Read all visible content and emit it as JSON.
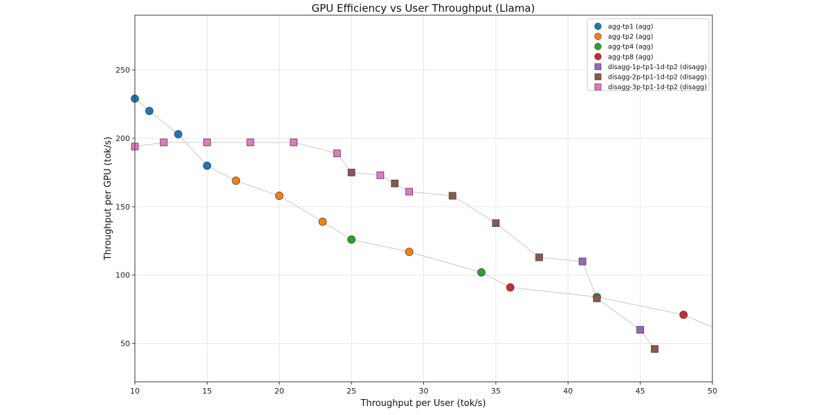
{
  "chart_data": {
    "type": "scatter",
    "title": "GPU Efficiency vs User Throughput (Llama)",
    "xlabel": "Throughput per User (tok/s)",
    "ylabel": "Throughput per GPU (tok/s)",
    "xlim": [
      10,
      50
    ],
    "ylim": [
      22,
      290
    ],
    "xticks": [
      10,
      15,
      20,
      25,
      30,
      35,
      40,
      45,
      50
    ],
    "yticks": [
      50,
      100,
      150,
      200,
      250
    ],
    "grid": true,
    "legend_position": "top-right",
    "pareto_lines": [
      {
        "points": [
          [
            10,
            229
          ],
          [
            11,
            220
          ],
          [
            13,
            203
          ],
          [
            15,
            180
          ],
          [
            17,
            169
          ],
          [
            20,
            158
          ],
          [
            23,
            139
          ],
          [
            25,
            126
          ],
          [
            29,
            117
          ],
          [
            34,
            102
          ],
          [
            36,
            91
          ],
          [
            42,
            84
          ],
          [
            48,
            71
          ],
          [
            50,
            62
          ]
        ]
      },
      {
        "points": [
          [
            10,
            194
          ],
          [
            12,
            197
          ],
          [
            15,
            197
          ],
          [
            18,
            197
          ],
          [
            21,
            197
          ],
          [
            24,
            189
          ],
          [
            25,
            175
          ],
          [
            27,
            173
          ],
          [
            28,
            167
          ],
          [
            29,
            161
          ],
          [
            32,
            158
          ],
          [
            35,
            138
          ],
          [
            38,
            113
          ],
          [
            41,
            110
          ],
          [
            42,
            83
          ],
          [
            45,
            60
          ],
          [
            46,
            46
          ]
        ]
      }
    ],
    "series": [
      {
        "name": "agg-tp1 (agg)",
        "marker": "circle",
        "color": "#1f77b4",
        "x": [
          10,
          11,
          13,
          15
        ],
        "y": [
          229,
          220,
          203,
          180
        ]
      },
      {
        "name": "agg-tp2 (agg)",
        "marker": "circle",
        "color": "#ff7f0e",
        "x": [
          17,
          20,
          23,
          29
        ],
        "y": [
          169,
          158,
          139,
          117
        ]
      },
      {
        "name": "agg-tp4 (agg)",
        "marker": "circle",
        "color": "#2ca02c",
        "x": [
          25,
          34,
          42
        ],
        "y": [
          126,
          102,
          84
        ]
      },
      {
        "name": "agg-tp8 (agg)",
        "marker": "circle",
        "color": "#d62728",
        "x": [
          36,
          48
        ],
        "y": [
          91,
          71
        ]
      },
      {
        "name": "disagg-1p-tp1-1d-tp2 (disagg)",
        "marker": "square",
        "color": "#9467bd",
        "x": [
          41,
          45
        ],
        "y": [
          110,
          60
        ]
      },
      {
        "name": "disagg-2p-tp1-1d-tp2 (disagg)",
        "marker": "square",
        "color": "#8c564b",
        "x": [
          25,
          28,
          32,
          35,
          38,
          42,
          46
        ],
        "y": [
          175,
          167,
          158,
          138,
          113,
          83,
          46
        ]
      },
      {
        "name": "disagg-3p-tp1-1d-tp2 (disagg)",
        "marker": "square",
        "color": "#e377c2",
        "x": [
          10,
          12,
          15,
          18,
          21,
          24,
          27,
          29
        ],
        "y": [
          194,
          197,
          197,
          197,
          197,
          189,
          173,
          161
        ]
      }
    ]
  }
}
